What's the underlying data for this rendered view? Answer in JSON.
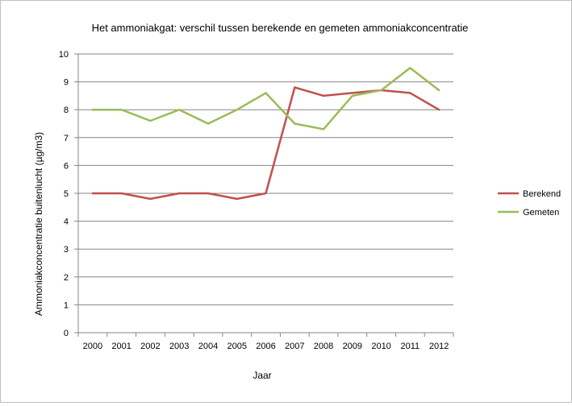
{
  "chart_data": {
    "type": "line",
    "title": "Het ammoniakgat: verschil tussen berekende en gemeten ammoniakconcentratie",
    "xlabel": "Jaar",
    "ylabel": "Ammoniakconcentratie  buitenlucht (µg/m3)",
    "categories": [
      "2000",
      "2001",
      "2002",
      "2003",
      "2004",
      "2005",
      "2006",
      "2007",
      "2008",
      "2009",
      "2010",
      "2011",
      "2012"
    ],
    "ylim": [
      0,
      10
    ],
    "yticks": [
      "0",
      "1",
      "2",
      "3",
      "4",
      "5",
      "6",
      "7",
      "8",
      "9",
      "10"
    ],
    "grid": true,
    "legend_position": "right",
    "series": [
      {
        "name": "Berekend",
        "color": "#c0504d",
        "values": [
          5.0,
          5.0,
          4.8,
          5.0,
          5.0,
          4.8,
          5.0,
          8.8,
          8.5,
          8.6,
          8.7,
          8.6,
          8.0
        ]
      },
      {
        "name": "Gemeten",
        "color": "#9bbb59",
        "values": [
          8.0,
          8.0,
          7.6,
          8.0,
          7.5,
          8.0,
          8.6,
          7.5,
          7.3,
          8.5,
          8.7,
          9.5,
          8.7
        ]
      }
    ]
  }
}
